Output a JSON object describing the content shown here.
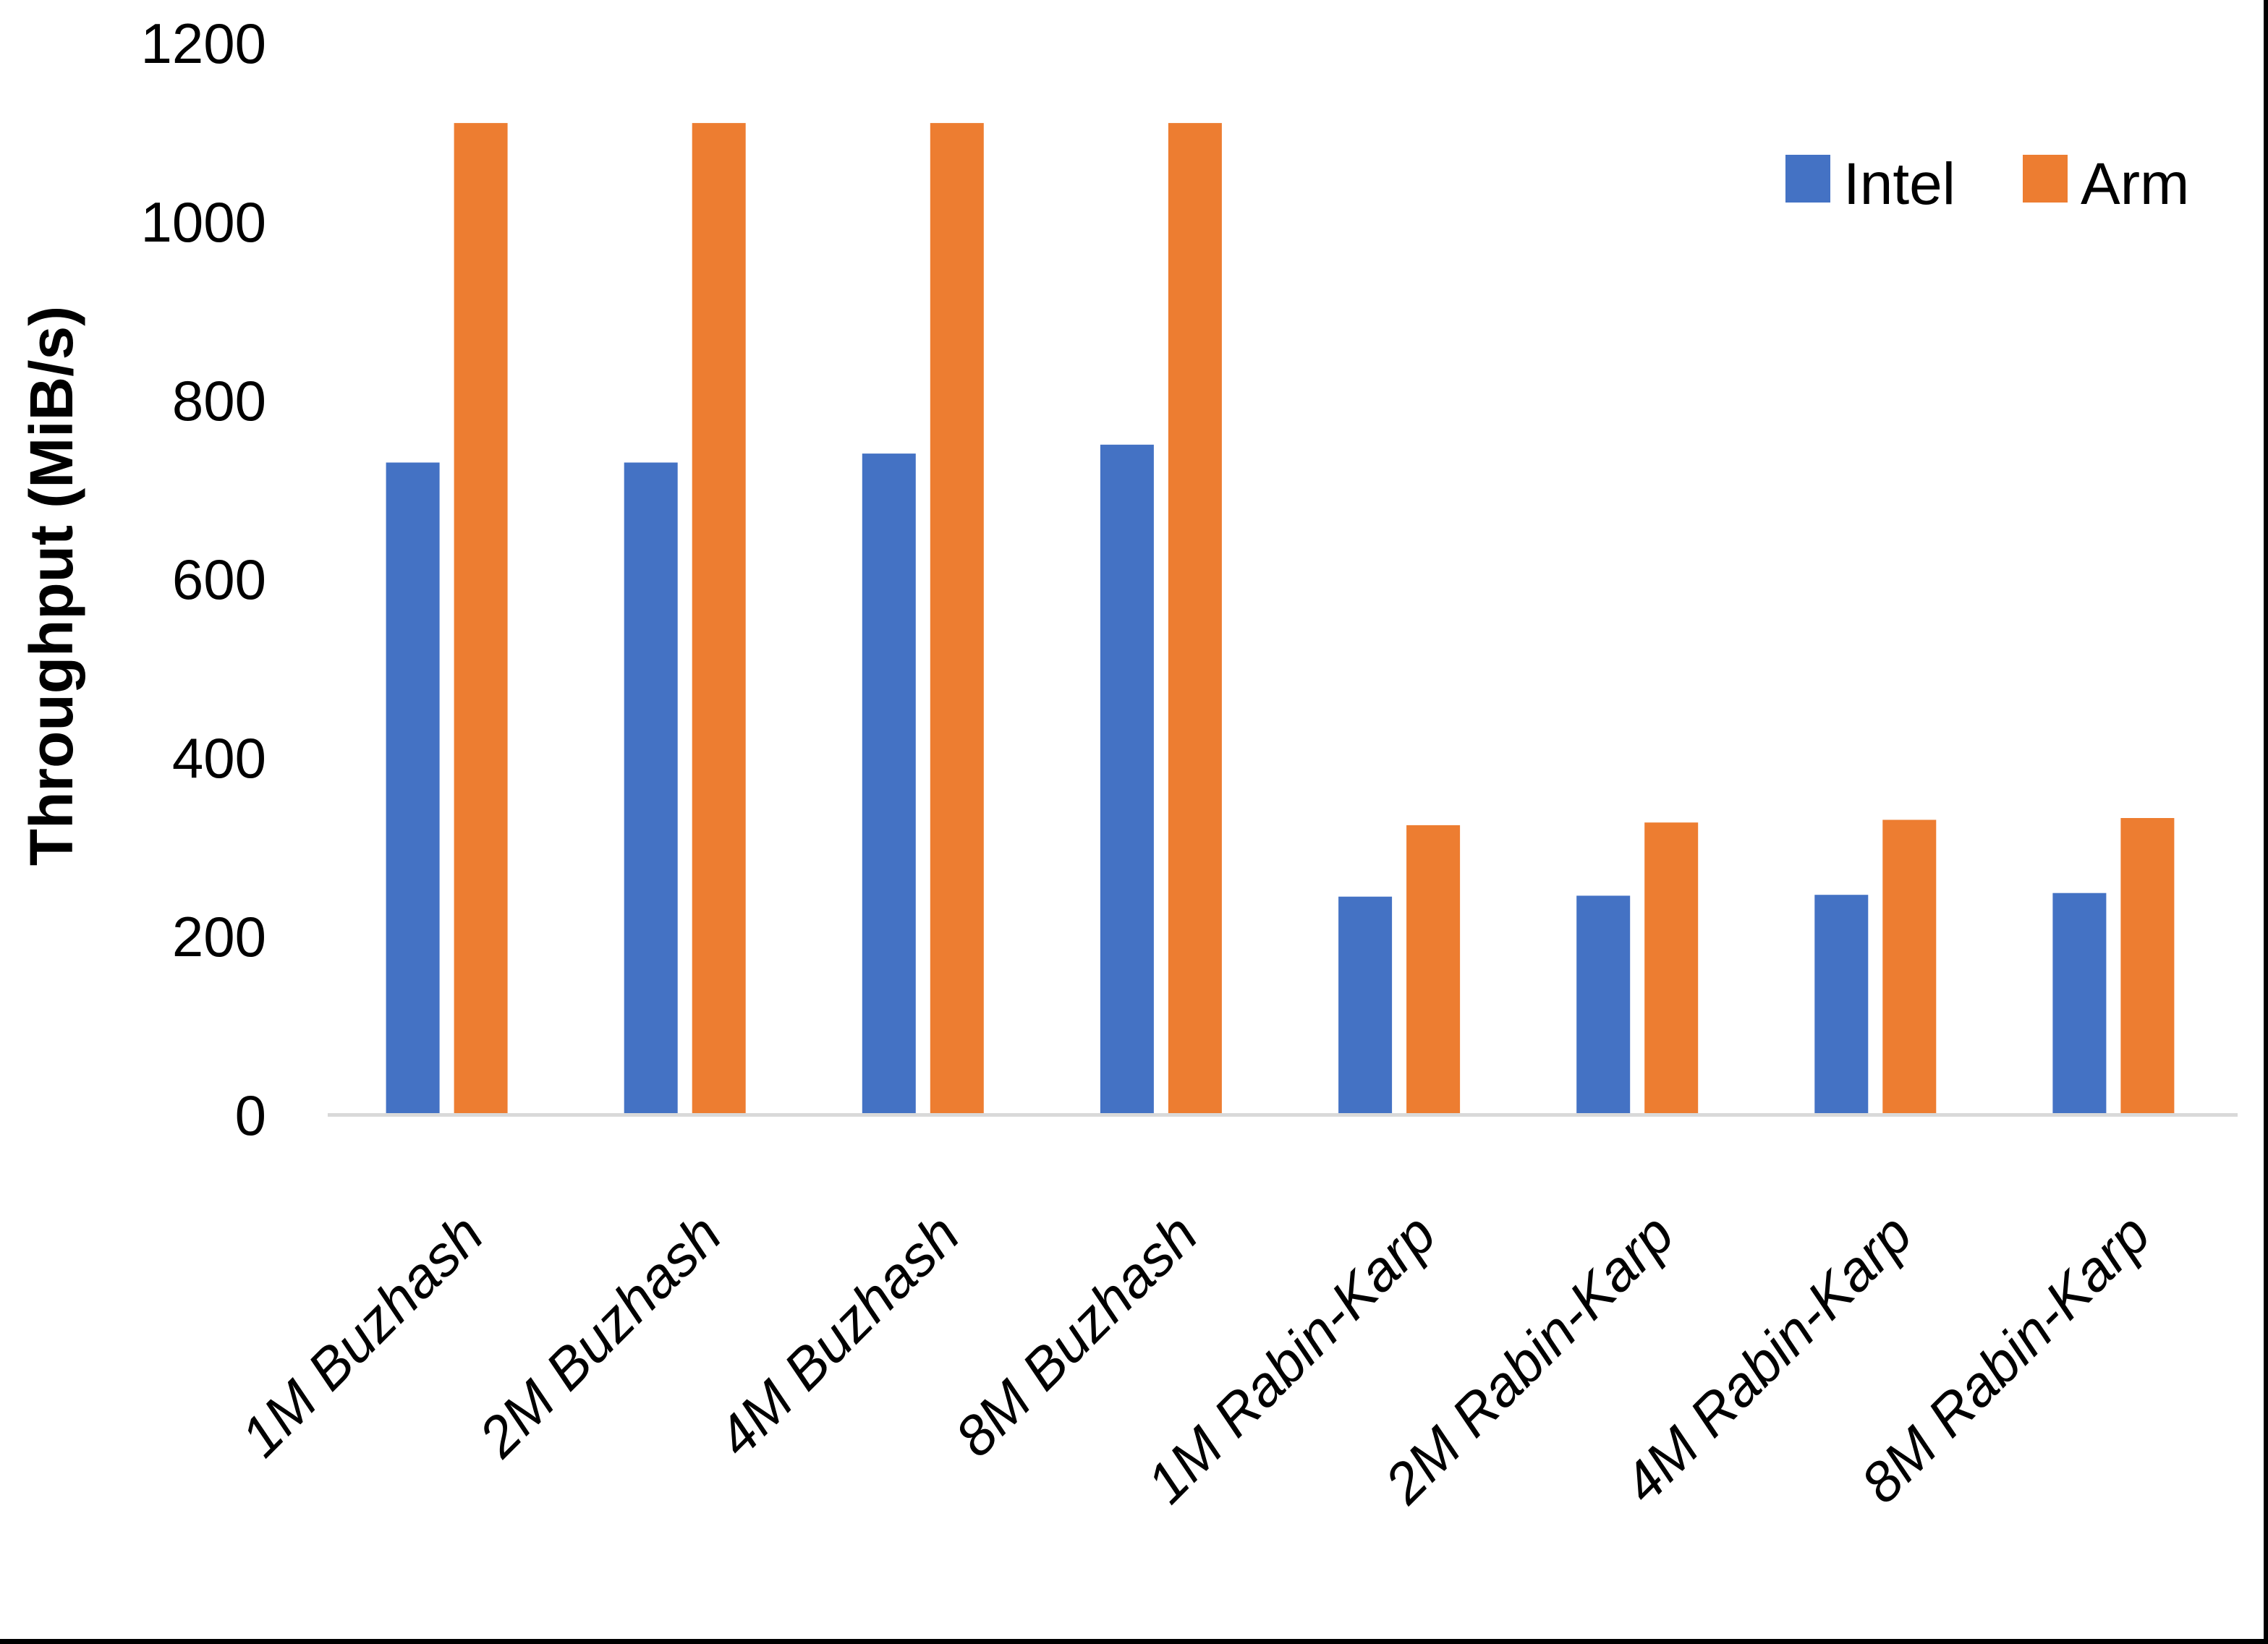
{
  "chart_data": {
    "type": "bar",
    "title": "",
    "xlabel": "",
    "ylabel": "Throughput (MiB/s)",
    "categories": [
      "1M Buzhash",
      "2M Buzhash",
      "4M Buzhash",
      "8M Buzhash",
      "1M Rabin-Karp",
      "2M Rabin-Karp",
      "4M Rabin-Karp",
      "8M Rabin-Karp"
    ],
    "series": [
      {
        "name": "Intel",
        "color": "#4472C4",
        "values": [
          730,
          730,
          740,
          750,
          244,
          245,
          246,
          248
        ]
      },
      {
        "name": "Arm",
        "color": "#ED7D31",
        "values": [
          1110,
          1110,
          1110,
          1110,
          324,
          327,
          330,
          332
        ]
      }
    ],
    "ylim": [
      0,
      1200
    ],
    "ytick_step": 200,
    "ytick_labels": [
      "0",
      "200",
      "400",
      "600",
      "800",
      "1000",
      "1200"
    ],
    "grid": "off",
    "legend_position": "top-right"
  },
  "colors": {
    "background": "#FFFFFF",
    "text": "#000000",
    "axis_line": "#D9D9D9",
    "frame_border": "#000000"
  }
}
